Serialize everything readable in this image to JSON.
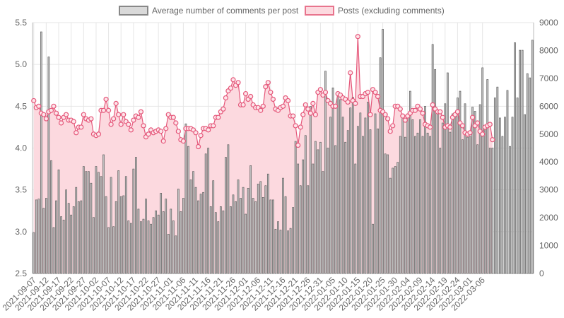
{
  "chart_data": {
    "type": "bar",
    "legend": {
      "placement": "top",
      "entries": [
        {
          "name": "Average number of comments per post",
          "swatch_fill": "#d9d9d9",
          "swatch_stroke": "#888888"
        },
        {
          "name": "Posts (excluding comments)",
          "swatch_fill": "#fcd9df",
          "swatch_stroke": "#e8748d"
        }
      ]
    },
    "colors": {
      "bar_fill": "#bdbdbd",
      "bar_stroke": "#555555",
      "area_fill": "#fcd9df",
      "line": "#e5577a",
      "grid": "#e6e6e6"
    },
    "x_tick_labels": [
      "2021-09-07",
      "2021-09-12",
      "2021-09-17",
      "2021-09-22",
      "2021-09-27",
      "2021-10-02",
      "2021-10-07",
      "2021-10-12",
      "2021-10-17",
      "2021-10-22",
      "2021-10-27",
      "2021-11-01",
      "2021-11-06",
      "2021-11-11",
      "2021-11-16",
      "2021-11-21",
      "2021-11-26",
      "2021-12-01",
      "2021-12-06",
      "2021-12-11",
      "2021-12-16",
      "2021-12-21",
      "2021-12-26",
      "2021-12-31",
      "2022-01-05",
      "2022-01-10",
      "2022-01-15",
      "2022-01-20",
      "2022-01-25",
      "2022-01-30",
      "2022-02-04",
      "2022-02-09",
      "2022-02-14",
      "2022-02-19",
      "2022-02-24",
      "2022-03-01",
      "2022-03-06"
    ],
    "y_left": {
      "min": 2.5,
      "max": 5.5,
      "step": 0.5,
      "ticks": [
        "2.5",
        "3.0",
        "3.5",
        "4.0",
        "4.5",
        "5.0",
        "5.5"
      ]
    },
    "y_right": {
      "min": 0,
      "max": 9000,
      "step": 1000,
      "ticks": [
        "0",
        "1000",
        "2000",
        "3000",
        "4000",
        "5000",
        "6000",
        "7000",
        "8000",
        "9000"
      ]
    },
    "series": [
      {
        "name": "Average number of comments per post",
        "kind": "bar",
        "axis": "left",
        "values": [
          2.99,
          3.38,
          3.39,
          5.39,
          3.28,
          3.4,
          5.09,
          3.85,
          3.05,
          3.37,
          3.74,
          3.18,
          3.14,
          3.5,
          3.34,
          3.2,
          3.3,
          3.53,
          3.36,
          3.37,
          3.78,
          3.72,
          3.72,
          3.58,
          3.17,
          3.78,
          3.71,
          3.66,
          3.92,
          3.42,
          3.05,
          3.65,
          3.06,
          3.36,
          3.73,
          3.42,
          3.43,
          3.66,
          3.13,
          3.1,
          3.75,
          3.89,
          3.27,
          3.12,
          3.15,
          3.39,
          3.13,
          3.09,
          3.17,
          3.25,
          3.2,
          3.46,
          3.24,
          3.39,
          2.97,
          3.27,
          3.13,
          2.95,
          3.51,
          3.24,
          3.4,
          4.29,
          4.02,
          3.62,
          3.72,
          3.53,
          3.37,
          3.45,
          3.47,
          3.93,
          4.0,
          3.3,
          3.61,
          3.23,
          3.12,
          3.3,
          3.25,
          3.89,
          4.04,
          3.3,
          3.44,
          3.36,
          3.62,
          3.4,
          3.53,
          3.21,
          3.52,
          3.79,
          3.4,
          3.36,
          3.57,
          3.6,
          3.41,
          3.55,
          3.69,
          3.38,
          3.38,
          3.03,
          3.12,
          3.02,
          3.64,
          3.42,
          3.01,
          3.04,
          3.29,
          4.08,
          3.81,
          3.55,
          3.86,
          4.15,
          3.55,
          4.5,
          3.81,
          4.08,
          3.98,
          4.07,
          3.72,
          4.92,
          4.0,
          4.37,
          4.72,
          4.03,
          4.67,
          4.58,
          4.37,
          4.07,
          4.21,
          4.48,
          4.61,
          3.81,
          4.26,
          4.42,
          4.14,
          4.36,
          4.55,
          4.22,
          3.09,
          4.41,
          4.23,
          5.08,
          5.42,
          3.93,
          3.92,
          3.64,
          3.76,
          3.78,
          3.83,
          4.14,
          4.4,
          4.13,
          4.41,
          4.68,
          4.34,
          4.14,
          4.18,
          4.34,
          4.14,
          4.5,
          4.18,
          4.14,
          5.24,
          4.94,
          4.42,
          4.0,
          4.3,
          4.53,
          4.9,
          4.19,
          4.41,
          4.42,
          4.6,
          4.68,
          4.1,
          4.53,
          4.13,
          4.14,
          4.49,
          4.44,
          4.04,
          4.52,
          4.96,
          4.23,
          4.82,
          4.0,
          4.0,
          4.6,
          4.73,
          4.36,
          4.14,
          4.37,
          4.69,
          4.02,
          4.37,
          5.26,
          4.6,
          5.17,
          5.17,
          4.4,
          4.89,
          4.84,
          5.29
        ]
      },
      {
        "name": "Posts (excluding comments)",
        "kind": "area-line",
        "axis": "right",
        "values": [
          6200,
          5950,
          6000,
          5750,
          5700,
          5550,
          5800,
          5850,
          6000,
          5750,
          5600,
          5400,
          5600,
          5700,
          5500,
          5500,
          5450,
          5050,
          5250,
          5250,
          5700,
          5550,
          5500,
          5550,
          5000,
          4950,
          5000,
          5850,
          5850,
          6250,
          5850,
          5350,
          5550,
          6100,
          5700,
          5350,
          5700,
          5450,
          5350,
          5150,
          5500,
          5650,
          5600,
          5800,
          5300,
          4900,
          5000,
          5150,
          5050,
          5100,
          5150,
          5100,
          4750,
          5200,
          5700,
          5600,
          5600,
          5400,
          5100,
          4800,
          4750,
          5200,
          5200,
          5200,
          5150,
          5050,
          4550,
          4950,
          5200,
          5200,
          5150,
          5300,
          5300,
          5600,
          5600,
          5800,
          5900,
          6300,
          6550,
          6650,
          6950,
          6750,
          6850,
          6050,
          6050,
          6450,
          6250,
          6350,
          6050,
          5950,
          5950,
          5850,
          6000,
          6700,
          6850,
          6500,
          6250,
          5900,
          5850,
          5950,
          6000,
          6300,
          6200,
          5650,
          5650,
          5300,
          4600,
          5250,
          5700,
          6050,
          5900,
          5750,
          6100,
          5700,
          6500,
          6600,
          6400,
          6500,
          6200,
          6100,
          6000,
          6000,
          6450,
          6400,
          6300,
          6250,
          6150,
          7200,
          6200,
          6100,
          8500,
          6350,
          6350,
          6450,
          6500,
          5700,
          6600,
          6500,
          6350,
          5850,
          5800,
          5700,
          5550,
          5100,
          5300,
          6000,
          6000,
          5900,
          5650,
          5500,
          5650,
          5750,
          5850,
          5850,
          6000,
          5900,
          5750,
          5350,
          5300,
          5250,
          6050,
          5900,
          5800,
          5800,
          5600,
          5250,
          5300,
          5250,
          5600,
          5700,
          5800,
          5400,
          5300,
          5050,
          5000,
          5050,
          5600,
          5300,
          5400,
          5100,
          5000,
          5250,
          5300,
          5350,
          4800
        ]
      }
    ]
  }
}
